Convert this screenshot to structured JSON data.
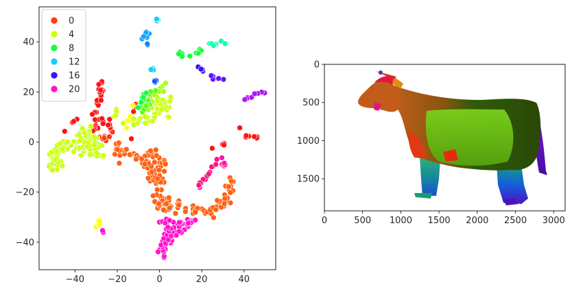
{
  "chart_data": [
    {
      "type": "scatter",
      "title": "",
      "xlabel": "",
      "ylabel": "",
      "xlim": [
        -57,
        55
      ],
      "ylim": [
        -51,
        54
      ],
      "xticks": [
        -40,
        -20,
        0,
        20,
        40
      ],
      "yticks": [
        -40,
        -20,
        0,
        20,
        40
      ],
      "grid": false,
      "legend": {
        "placement": "top-left",
        "entries": [
          {
            "label": "0",
            "color": "#ff3b14"
          },
          {
            "label": "4",
            "color": "#cdff14"
          },
          {
            "label": "8",
            "color": "#14ff3b"
          },
          {
            "label": "12",
            "color": "#14cdff"
          },
          {
            "label": "16",
            "color": "#3b14ff"
          },
          {
            "label": "20",
            "color": "#ff14cd"
          }
        ]
      },
      "hue_palette": [
        "#ff1414",
        "#ff3b14",
        "#ff6214",
        "#ff8914",
        "#ffb014",
        "#ffd614",
        "#ffff14",
        "#cdff14",
        "#a6ff14",
        "#7fff14",
        "#58ff14",
        "#14ff3b",
        "#14ff62",
        "#14ff89",
        "#14ffb0",
        "#14ffd6",
        "#14cdff",
        "#14a6ff",
        "#147fff",
        "#1458ff",
        "#3b14ff",
        "#6214ff",
        "#8914ff",
        "#b014ff",
        "#ff14cd",
        "#ff14a6",
        "#ff147f"
      ],
      "clusters": [
        {
          "hue": 1,
          "path": [
            [
              -29,
              -2
            ],
            [
              -25,
              2
            ],
            [
              -22,
              5
            ]
          ],
          "spread": 1.2,
          "n": 14
        },
        {
          "hue": 0,
          "path": [
            [
              -30,
              12
            ],
            [
              -29,
              17
            ],
            [
              -27,
              24
            ]
          ],
          "spread": 0.8,
          "n": 18
        },
        {
          "hue": 0,
          "path": [
            [
              -33,
              5
            ],
            [
              -29,
              8
            ],
            [
              -24,
              7
            ]
          ],
          "spread": 1.0,
          "n": 16
        },
        {
          "hue": 0,
          "path": [
            [
              -40,
              8
            ]
          ],
          "spread": 0.8,
          "n": 3
        },
        {
          "hue": 0,
          "path": [
            [
              -45,
              4
            ]
          ],
          "spread": 0.4,
          "n": 1
        },
        {
          "hue": 0,
          "path": [
            [
              -13,
              12
            ],
            [
              -11,
              15
            ]
          ],
          "spread": 0.5,
          "n": 4
        },
        {
          "hue": 0,
          "path": [
            [
              -13,
              2
            ]
          ],
          "spread": 0.3,
          "n": 1
        },
        {
          "hue": 2,
          "path": [
            [
              -22,
              -2
            ],
            [
              -18,
              -5
            ],
            [
              -10,
              -6
            ],
            [
              -3,
              -7
            ],
            [
              -1,
              -12
            ],
            [
              1,
              -18
            ],
            [
              0,
              -24
            ],
            [
              4,
              -26
            ],
            [
              10,
              -25
            ],
            [
              17,
              -27
            ]
          ],
          "spread": 1.5,
          "n": 90
        },
        {
          "hue": 2,
          "path": [
            [
              17,
              -27
            ],
            [
              24,
              -28
            ],
            [
              30,
              -25
            ],
            [
              33,
              -20
            ],
            [
              34,
              -15
            ]
          ],
          "spread": 1.2,
          "n": 40
        },
        {
          "hue": 2,
          "path": [
            [
              -10,
              -6
            ],
            [
              -5,
              -9
            ],
            [
              -2,
              -15
            ]
          ],
          "spread": 1.3,
          "n": 20
        },
        {
          "hue": 2,
          "path": [
            [
              -6,
              -4
            ],
            [
              0,
              -6
            ],
            [
              4,
              -8
            ]
          ],
          "spread": 1.0,
          "n": 10
        },
        {
          "hue": 6,
          "path": [
            [
              -29,
              -33
            ]
          ],
          "spread": 0.8,
          "n": 6
        },
        {
          "hue": 6,
          "path": [
            [
              -16,
              6
            ],
            [
              -14,
              9
            ],
            [
              -12,
              14
            ]
          ],
          "spread": 0.6,
          "n": 6
        },
        {
          "hue": 5,
          "path": [
            [
              -25,
              -33
            ]
          ],
          "spread": 0.3,
          "n": 0
        },
        {
          "hue": 7,
          "path": [
            [
              -52,
              -9
            ],
            [
              -48,
              -3
            ],
            [
              -44,
              -1
            ],
            [
              -38,
              -2
            ],
            [
              -33,
              -3
            ],
            [
              -28,
              -5
            ]
          ],
          "spread": 1.6,
          "n": 60
        },
        {
          "hue": 7,
          "path": [
            [
              -50,
              -12
            ],
            [
              -48,
              -6
            ]
          ],
          "spread": 1.2,
          "n": 12
        },
        {
          "hue": 7,
          "path": [
            [
              -38,
              2
            ],
            [
              -34,
              4
            ],
            [
              -30,
              1
            ]
          ],
          "spread": 1.3,
          "n": 25
        },
        {
          "hue": 7,
          "path": [
            [
              -16,
              7
            ],
            [
              -8,
              9
            ],
            [
              -2,
              11
            ],
            [
              2,
              18
            ],
            [
              4,
              10
            ]
          ],
          "spread": 1.5,
          "n": 40
        },
        {
          "hue": 7,
          "path": [
            [
              -22,
              10
            ],
            [
              -20,
              13
            ]
          ],
          "spread": 0.6,
          "n": 6
        },
        {
          "hue": 8,
          "path": [
            [
              -7,
              14
            ],
            [
              -3,
              19
            ],
            [
              0,
              20
            ],
            [
              2,
              22
            ]
          ],
          "spread": 0.8,
          "n": 14
        },
        {
          "hue": 10,
          "path": [
            [
              -8,
              11
            ],
            [
              -6,
              16
            ],
            [
              -3,
              21
            ]
          ],
          "spread": 0.7,
          "n": 10
        },
        {
          "hue": 11,
          "path": [
            [
              -10,
              14
            ],
            [
              -8,
              17
            ],
            [
              -5,
              21
            ]
          ],
          "spread": 0.6,
          "n": 8
        },
        {
          "hue": 11,
          "path": [
            [
              9,
              36
            ],
            [
              12,
              35
            ],
            [
              17,
              35
            ],
            [
              20,
              37
            ]
          ],
          "spread": 0.6,
          "n": 10
        },
        {
          "hue": 14,
          "path": [
            [
              22,
              39
            ],
            [
              26,
              39.5
            ],
            [
              31,
              39.5
            ]
          ],
          "spread": 0.4,
          "n": 9
        },
        {
          "hue": 16,
          "path": [
            [
              -2,
              48.5
            ],
            [
              0,
              49.5
            ]
          ],
          "spread": 0.4,
          "n": 4
        },
        {
          "hue": 17,
          "path": [
            [
              -9,
              40
            ],
            [
              -7,
              42
            ],
            [
              -5,
              44
            ]
          ],
          "spread": 0.6,
          "n": 7
        },
        {
          "hue": 18,
          "path": [
            [
              -6,
              39
            ]
          ],
          "spread": 0.3,
          "n": 2
        },
        {
          "hue": 16,
          "path": [
            [
              -4,
              29.5
            ],
            [
              -2,
              28.5
            ]
          ],
          "spread": 0.3,
          "n": 3
        },
        {
          "hue": 19,
          "path": [
            [
              -2,
              24
            ],
            [
              -1,
              26
            ]
          ],
          "spread": 0.4,
          "n": 4
        },
        {
          "hue": 20,
          "path": [
            [
              16,
              31
            ],
            [
              19,
              29
            ],
            [
              22,
              28
            ]
          ],
          "spread": 0.4,
          "n": 5
        },
        {
          "hue": 21,
          "path": [
            [
              24,
              26
            ],
            [
              28,
              25
            ],
            [
              31,
              25.5
            ]
          ],
          "spread": 0.4,
          "n": 7
        },
        {
          "hue": 23,
          "path": [
            [
              40,
              17
            ],
            [
              44,
              18.5
            ],
            [
              48,
              19.5
            ],
            [
              52,
              20
            ]
          ],
          "spread": 0.4,
          "n": 8
        },
        {
          "hue": 0,
          "path": [
            [
              38,
              6
            ]
          ],
          "spread": 0.2,
          "n": 1
        },
        {
          "hue": 0,
          "path": [
            [
              41,
              2.5
            ],
            [
              44,
              2
            ],
            [
              46,
              1.5
            ]
          ],
          "spread": 0.3,
          "n": 6
        },
        {
          "hue": 0,
          "path": [
            [
              25,
              -2.5
            ]
          ],
          "spread": 0.2,
          "n": 1
        },
        {
          "hue": 0,
          "path": [
            [
              29,
              -2
            ],
            [
              31,
              0
            ]
          ],
          "spread": 0.3,
          "n": 3
        },
        {
          "hue": 25,
          "path": [
            [
              29,
              -5
            ],
            [
              31,
              -10
            ]
          ],
          "spread": 0.4,
          "n": 6
        },
        {
          "hue": 26,
          "path": [
            [
              18,
              -18
            ],
            [
              22,
              -14
            ],
            [
              25,
              -10
            ],
            [
              27,
              -7
            ]
          ],
          "spread": 0.5,
          "n": 14
        },
        {
          "hue": 24,
          "path": [
            [
              0,
              -45
            ],
            [
              2,
              -42
            ],
            [
              4,
              -38
            ],
            [
              8,
              -35
            ],
            [
              12,
              -33
            ],
            [
              16,
              -32
            ]
          ],
          "spread": 1.3,
          "n": 60
        },
        {
          "hue": 24,
          "path": [
            [
              1,
              -33
            ],
            [
              4,
              -32
            ],
            [
              8,
              -31
            ]
          ],
          "spread": 0.8,
          "n": 10
        },
        {
          "hue": 24,
          "path": [
            [
              -27,
              -36
            ]
          ],
          "spread": 0.4,
          "n": 4
        }
      ]
    },
    {
      "type": "image",
      "title": "",
      "xlabel": "",
      "ylabel": "",
      "xlim": [
        0,
        3150
      ],
      "ylim": [
        1920,
        0
      ],
      "xticks": [
        0,
        500,
        1000,
        1500,
        2000,
        2500,
        3000
      ],
      "yticks": [
        0,
        500,
        1000,
        1500
      ],
      "subject": "colored 3D cow mesh segmentation"
    }
  ],
  "ticks": {
    "left_x": [
      "−40",
      "−20",
      "0",
      "20",
      "40"
    ],
    "left_y": [
      "−40",
      "−20",
      "0",
      "20",
      "40"
    ],
    "right_x": [
      "0",
      "500",
      "1000",
      "1500",
      "2000",
      "2500",
      "3000"
    ],
    "right_y": [
      "0",
      "500",
      "1000",
      "1500"
    ]
  }
}
